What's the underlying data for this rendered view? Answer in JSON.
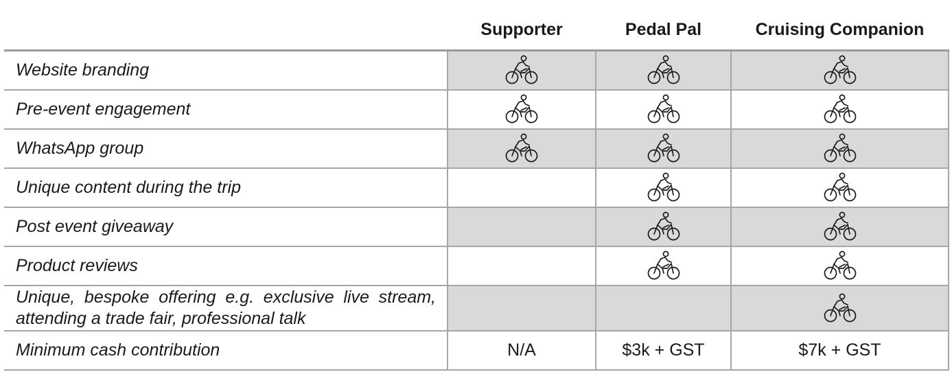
{
  "columns": [
    "",
    "Supporter",
    "Pedal Pal",
    "Cruising Companion"
  ],
  "rows": [
    {
      "feature": "Website branding",
      "included": [
        true,
        true,
        true
      ],
      "shaded": true
    },
    {
      "feature": "Pre-event engagement",
      "included": [
        true,
        true,
        true
      ],
      "shaded": false
    },
    {
      "feature": "WhatsApp group",
      "included": [
        true,
        true,
        true
      ],
      "shaded": true
    },
    {
      "feature": "Unique content during the trip",
      "included": [
        false,
        true,
        true
      ],
      "shaded": false
    },
    {
      "feature": "Post event giveaway",
      "included": [
        false,
        true,
        true
      ],
      "shaded": true
    },
    {
      "feature": "Product reviews",
      "included": [
        false,
        true,
        true
      ],
      "shaded": false
    },
    {
      "feature": "Unique, bespoke offering e.g. exclusive live stream, attending a trade fair, professional talk",
      "included": [
        false,
        false,
        true
      ],
      "shaded": true
    }
  ],
  "price_row": {
    "feature": "Minimum cash contribution",
    "values": [
      "N/A",
      "$3k + GST",
      "$7k + GST"
    ]
  },
  "included_icon": "cyclist-icon",
  "colors": {
    "shade": "#d9d9d9",
    "border": "#a6a6a6",
    "text": "#1a1a1a"
  }
}
